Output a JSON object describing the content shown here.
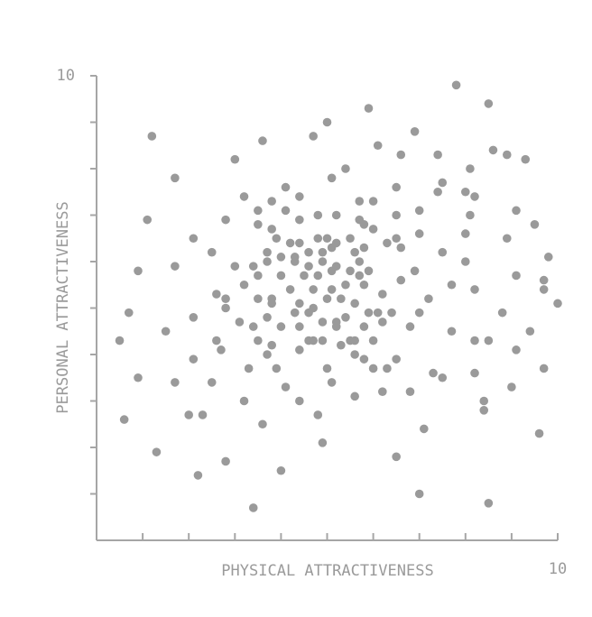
{
  "chart_data": {
    "type": "scatter",
    "xlabel": "PHYSICAL ATTRACTIVENESS",
    "ylabel": "PERSONAL ATTRACTIVENESS",
    "xlim": [
      0,
      10
    ],
    "ylim": [
      0,
      10
    ],
    "xticks": [
      1,
      2,
      3,
      4,
      5,
      6,
      7,
      8,
      9,
      10
    ],
    "yticks": [
      1,
      2,
      3,
      4,
      5,
      6,
      7,
      8,
      9,
      10
    ],
    "color": "#9a9a9a",
    "x": [
      7.8,
      8.5,
      5.9,
      1.2,
      5.0,
      4.7,
      3.6,
      6.9,
      6.1,
      8.6,
      8.9,
      9.3,
      7.4,
      6.6,
      3.0,
      5.4,
      8.1,
      1.7,
      5.1,
      7.5,
      6.5,
      4.1,
      3.2,
      7.4,
      8.0,
      8.2,
      3.8,
      5.7,
      6.0,
      4.4,
      3.5,
      4.1,
      4.8,
      5.2,
      5.7,
      6.5,
      7.0,
      9.1,
      1.1,
      2.8,
      3.5,
      3.8,
      4.4,
      5.8,
      6.0,
      8.1,
      9.5,
      2.1,
      3.9,
      4.2,
      4.4,
      4.8,
      5.0,
      5.2,
      5.5,
      6.3,
      6.5,
      7.0,
      8.0,
      8.9,
      2.5,
      3.7,
      4.0,
      4.3,
      4.6,
      4.9,
      5.1,
      5.6,
      5.8,
      6.6,
      7.5,
      0.9,
      1.7,
      3.0,
      3.4,
      3.7,
      4.3,
      4.6,
      4.9,
      5.2,
      5.7,
      5.9,
      6.9,
      8.0,
      9.8,
      3.2,
      3.5,
      4.0,
      4.5,
      4.8,
      5.1,
      5.5,
      5.7,
      6.6,
      7.7,
      9.1,
      9.7,
      2.6,
      2.8,
      3.8,
      4.2,
      4.7,
      5.1,
      5.4,
      5.8,
      6.2,
      7.2,
      8.2,
      9.7,
      10.0,
      0.7,
      2.8,
      3.5,
      3.8,
      4.4,
      4.7,
      5.0,
      5.3,
      5.6,
      5.9,
      6.1,
      6.4,
      7.0,
      8.8,
      3.1,
      2.1,
      3.7,
      4.3,
      4.6,
      4.9,
      5.2,
      5.4,
      6.2,
      6.8,
      1.5,
      3.4,
      4.0,
      4.4,
      4.6,
      4.9,
      5.2,
      5.8,
      7.7,
      9.4,
      0.5,
      2.6,
      3.5,
      3.8,
      4.4,
      4.7,
      5.3,
      5.5,
      5.6,
      6.0,
      8.2,
      8.5,
      2.7,
      3.7,
      5.6,
      5.8,
      6.5,
      9.1,
      2.1,
      3.3,
      3.9,
      5.0,
      5.1,
      6.0,
      6.3,
      7.3,
      7.5,
      8.2,
      9.7,
      0.9,
      1.7,
      2.5,
      4.1,
      6.8,
      9.0,
      3.2,
      4.4,
      5.6,
      6.2,
      8.4,
      8.4,
      2.0,
      2.3,
      4.8,
      0.6,
      3.6,
      7.1,
      9.6,
      4.9,
      1.3,
      6.5,
      2.8,
      4.0,
      2.2,
      7.0,
      8.5,
      3.4
    ],
    "values": [
      9.8,
      9.4,
      9.3,
      8.7,
      9.0,
      8.7,
      8.6,
      8.8,
      8.5,
      8.4,
      8.3,
      8.2,
      8.3,
      8.3,
      8.2,
      8.0,
      8.0,
      7.8,
      7.8,
      7.7,
      7.6,
      7.6,
      7.4,
      7.5,
      7.5,
      7.4,
      7.3,
      7.3,
      7.3,
      7.4,
      7.1,
      7.1,
      7.0,
      7.0,
      6.9,
      7.0,
      7.1,
      7.1,
      6.9,
      6.9,
      6.8,
      6.7,
      6.9,
      6.8,
      6.7,
      7.0,
      6.8,
      6.5,
      6.5,
      6.4,
      6.4,
      6.5,
      6.5,
      6.4,
      6.5,
      6.4,
      6.5,
      6.6,
      6.6,
      6.5,
      6.2,
      6.2,
      6.1,
      6.1,
      6.2,
      6.2,
      6.3,
      6.2,
      6.3,
      6.3,
      6.2,
      5.8,
      5.9,
      5.9,
      5.9,
      6.0,
      6.0,
      5.9,
      6.0,
      5.9,
      6.0,
      5.8,
      5.8,
      6.0,
      6.1,
      5.5,
      5.7,
      5.7,
      5.7,
      5.7,
      5.8,
      5.8,
      5.7,
      5.6,
      5.5,
      5.7,
      5.6,
      5.3,
      5.2,
      5.2,
      5.4,
      5.4,
      5.4,
      5.5,
      5.5,
      5.3,
      5.2,
      5.4,
      5.4,
      5.1,
      4.9,
      5.0,
      5.2,
      5.1,
      5.1,
      5.0,
      5.2,
      5.2,
      5.1,
      4.9,
      4.9,
      4.9,
      4.9,
      4.9,
      4.7,
      4.8,
      4.8,
      4.9,
      4.9,
      4.7,
      4.7,
      4.8,
      4.7,
      4.6,
      4.5,
      4.6,
      4.6,
      4.6,
      4.3,
      4.3,
      4.6,
      4.6,
      4.5,
      4.5,
      4.3,
      4.3,
      4.3,
      4.2,
      4.1,
      4.3,
      4.2,
      4.3,
      4.3,
      4.3,
      4.3,
      4.3,
      4.1,
      4.0,
      4.0,
      3.9,
      3.9,
      4.1,
      3.9,
      3.7,
      3.7,
      3.7,
      3.4,
      3.7,
      3.7,
      3.6,
      3.5,
      3.6,
      3.7,
      3.5,
      3.4,
      3.4,
      3.3,
      3.2,
      3.3,
      3.0,
      3.0,
      3.1,
      3.2,
      3.0,
      2.8,
      2.7,
      2.7,
      2.7,
      2.6,
      2.5,
      2.4,
      2.3,
      2.1,
      1.9,
      1.8,
      1.7,
      1.5,
      1.4,
      1.0,
      0.8,
      0.7
    ]
  }
}
